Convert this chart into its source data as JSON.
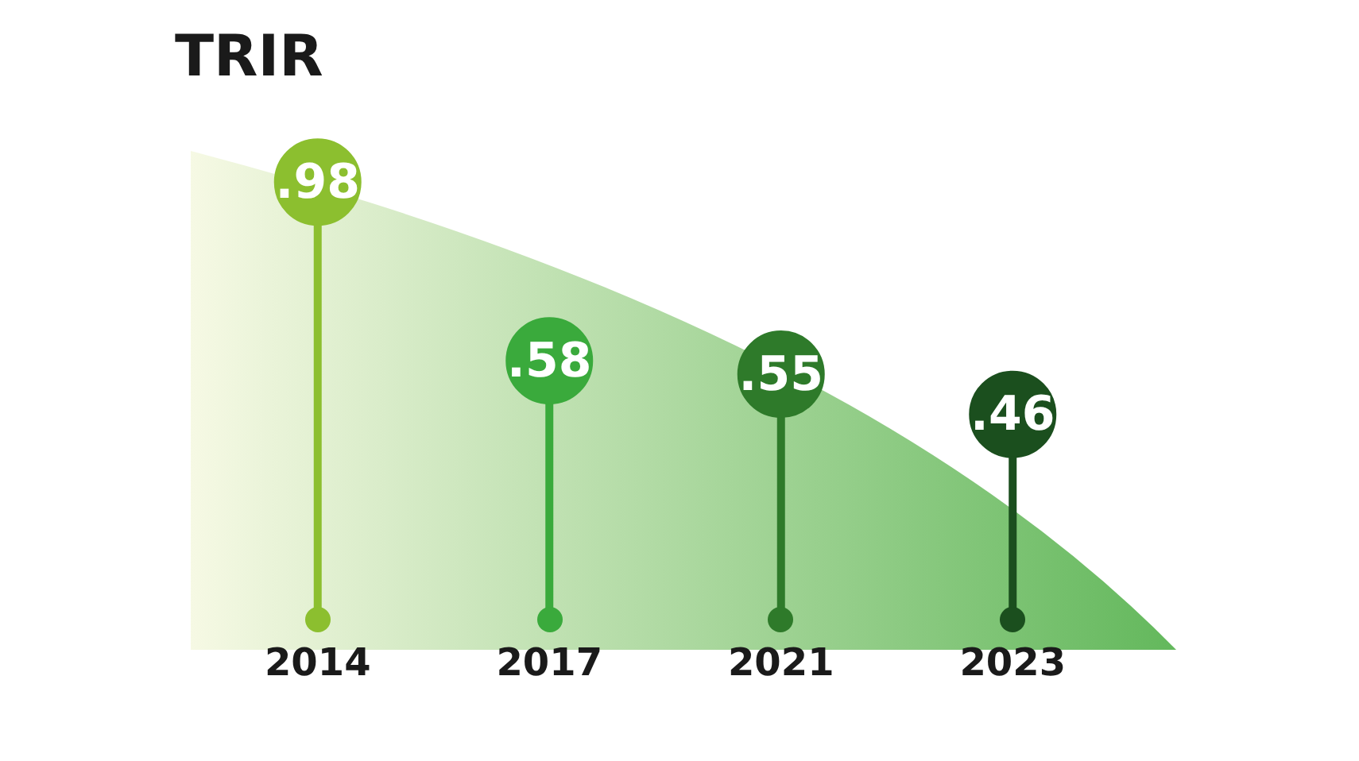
{
  "chart_data": {
    "type": "lollipop",
    "title": "TRIR",
    "categories": [
      "2014",
      "2017",
      "2021",
      "2023"
    ],
    "values": [
      0.98,
      0.58,
      0.55,
      0.46
    ],
    "colors": [
      "#8cbf2f",
      "#3aaa3c",
      "#2e7a2a",
      "#1b4f1e"
    ],
    "value_labels": [
      ".98",
      ".58",
      ".55",
      ".46"
    ],
    "tick_labels": "x"
  }
}
